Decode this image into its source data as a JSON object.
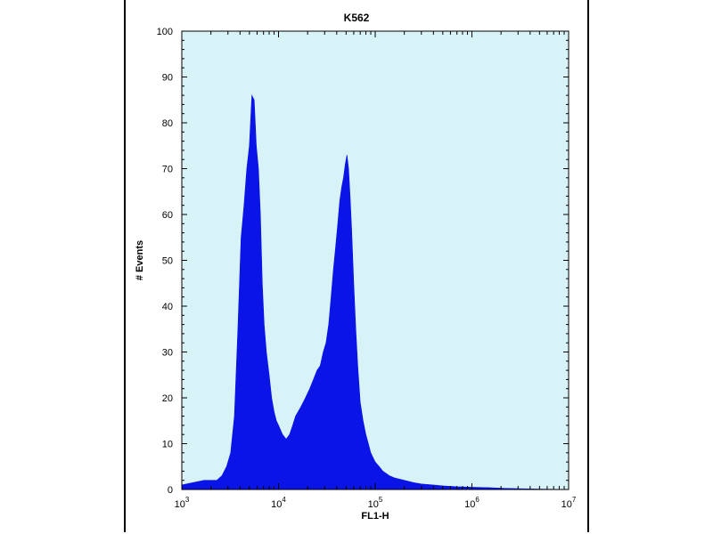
{
  "chart_data": {
    "type": "area",
    "title": "K562",
    "xlabel": "FL1-H",
    "ylabel": "# Events",
    "x_scale": "log",
    "xlim": [
      1000,
      10000000
    ],
    "ylim": [
      0,
      100
    ],
    "y_ticks": [
      0,
      10,
      20,
      30,
      40,
      50,
      60,
      70,
      80,
      90,
      100
    ],
    "x_ticks": [
      {
        "base": "10",
        "exp": "3",
        "value": 1000
      },
      {
        "base": "10",
        "exp": "4",
        "value": 10000
      },
      {
        "base": "10",
        "exp": "5",
        "value": 100000
      },
      {
        "base": "10",
        "exp": "6",
        "value": 1000000
      },
      {
        "base": "10",
        "exp": "7",
        "value": 10000000
      }
    ],
    "grid": false,
    "colors": {
      "fill": "#0a14e6",
      "plot_background": "#d8f3f8",
      "axis": "#000000"
    },
    "series": [
      {
        "x": [
          1000,
          1300,
          1700,
          2000,
          2300,
          2600,
          2900,
          3200,
          3500,
          3800,
          4100,
          4400,
          4700,
          5000,
          5300,
          5600,
          5900,
          6200,
          6500,
          6800,
          7100,
          7500,
          8000,
          8500,
          9000,
          9500,
          10000,
          11000,
          12000,
          13000,
          14000,
          15000,
          17000,
          19000,
          21000,
          23000,
          25000,
          27000,
          29000,
          31000,
          33000,
          35000,
          37000,
          39000,
          41000,
          43000,
          45000,
          47000,
          49000,
          51000,
          53000,
          55000,
          57000,
          60000,
          63000,
          66000,
          70000,
          75000,
          80000,
          85000,
          90000,
          100000,
          110000,
          120000,
          140000,
          160000,
          200000,
          250000,
          300000,
          400000,
          500000,
          700000,
          1000000,
          1500000,
          2000000,
          3000000,
          5000000,
          10000000
        ],
        "y": [
          1,
          1.5,
          2,
          2,
          2,
          3,
          5,
          8,
          16,
          35,
          55,
          62,
          70,
          75,
          86,
          85,
          75,
          70,
          60,
          45,
          36,
          30,
          25,
          20,
          17,
          15,
          14,
          12,
          11,
          12,
          14,
          16,
          18,
          20,
          22,
          24,
          26,
          27,
          30,
          32,
          36,
          42,
          48,
          53,
          58,
          63,
          66,
          68,
          71,
          73,
          70,
          64,
          57,
          45,
          35,
          27,
          19,
          15,
          12,
          10,
          8,
          6,
          5,
          4,
          3,
          2.5,
          2,
          1.5,
          1.2,
          1,
          0.8,
          0.6,
          0.5,
          0.4,
          0.3,
          0.2,
          0.1,
          0
        ]
      }
    ]
  }
}
